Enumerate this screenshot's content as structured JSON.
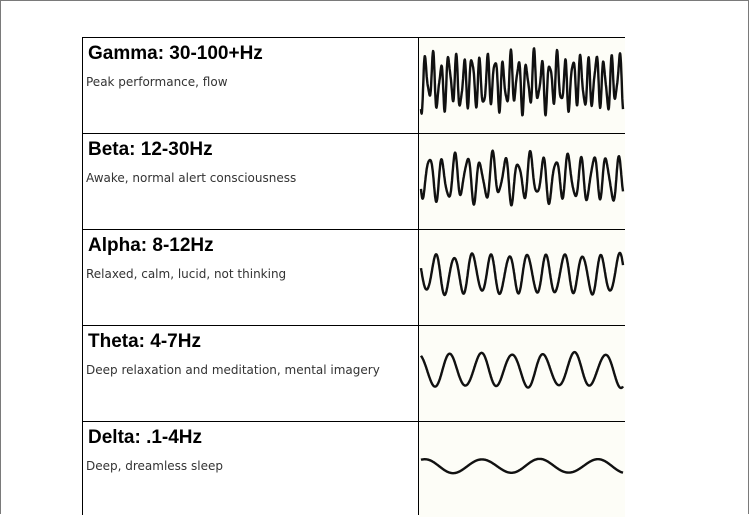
{
  "bands": [
    {
      "id": "gamma",
      "title": "Gamma: 30-100+Hz",
      "description": "Peak performance, flow",
      "wave": {
        "cycles": 26,
        "amplitude": 0.85,
        "jitter": 0.35
      }
    },
    {
      "id": "beta",
      "title": "Beta: 12-30Hz",
      "description": "Awake, normal alert consciousness",
      "wave": {
        "cycles": 16,
        "amplitude": 0.7,
        "jitter": 0.3
      }
    },
    {
      "id": "alpha",
      "title": "Alpha: 8-12Hz",
      "description": "Relaxed, calm, lucid, not thinking",
      "wave": {
        "cycles": 11,
        "amplitude": 0.55,
        "jitter": 0.15
      }
    },
    {
      "id": "theta",
      "title": "Theta: 4-7Hz",
      "description": "Deep relaxation and meditation, mental imagery",
      "wave": {
        "cycles": 6.5,
        "amplitude": 0.45,
        "jitter": 0.1
      }
    },
    {
      "id": "delta",
      "title": "Delta: .1-4Hz",
      "description": "Deep, dreamless sleep",
      "wave": {
        "cycles": 3.5,
        "amplitude": 0.18,
        "jitter": 0.05
      }
    }
  ],
  "colors": {
    "wave": "#111111",
    "wave_cell_bg": "#fdfdf7",
    "grid": "#000000"
  }
}
